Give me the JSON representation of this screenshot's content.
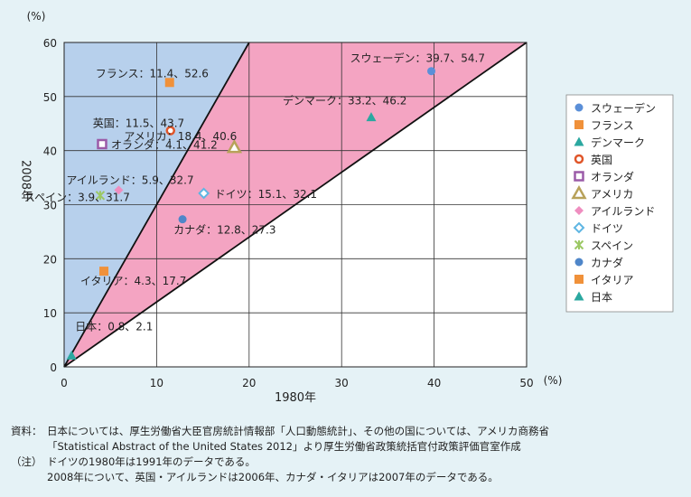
{
  "chart_data": {
    "type": "scatter",
    "x_unit": "(%)",
    "y_unit": "(%)",
    "xlabel": "1980年",
    "ylabel": "2008年",
    "xlim": [
      0,
      50
    ],
    "ylim": [
      0,
      60
    ],
    "x_ticks": [
      "0",
      "10",
      "20",
      "30",
      "40",
      "50"
    ],
    "y_ticks": [
      "0",
      "10",
      "20",
      "30",
      "40",
      "50",
      "60"
    ],
    "grid": true,
    "legend_position": "right",
    "reference_lines": [
      {
        "from": [
          0,
          0
        ],
        "to": [
          20,
          60
        ],
        "label": "slope 3"
      },
      {
        "from": [
          0,
          0
        ],
        "to": [
          50,
          60
        ],
        "label": "slope 1.2"
      }
    ],
    "shaded_regions": [
      {
        "fill": "#b7d0ec",
        "description": "above y = 3x"
      },
      {
        "fill": "#f4a4c2",
        "description": "between y = 1.2x and y = 3x"
      }
    ],
    "series": [
      {
        "name": "スウェーデン",
        "x": 39.7,
        "y": 54.7,
        "label": "スウェーデン：39.7、54.7",
        "marker": "circle",
        "color": "#5b8fd8"
      },
      {
        "name": "フランス",
        "x": 11.4,
        "y": 52.6,
        "label": "フランス：11.4、52.6",
        "marker": "square",
        "color": "#f0913a"
      },
      {
        "name": "デンマーク",
        "x": 33.2,
        "y": 46.2,
        "label": "デンマーク：33.2、46.2",
        "marker": "triangle",
        "color": "#2ba8a0"
      },
      {
        "name": "英国",
        "x": 11.5,
        "y": 43.7,
        "label": "英国：11.5、43.7",
        "marker": "ring",
        "color": "#e0562a"
      },
      {
        "name": "オランダ",
        "x": 4.1,
        "y": 41.2,
        "label": "オランダ：4.1、41.2",
        "marker": "hollow-square",
        "color": "#9b5ba8"
      },
      {
        "name": "アメリカ",
        "x": 18.4,
        "y": 40.6,
        "label": "アメリカ：18.4、40.6",
        "marker": "hollow-triangle",
        "color": "#b8a25a"
      },
      {
        "name": "アイルランド",
        "x": 5.9,
        "y": 32.7,
        "label": "アイルランド：5.9、32.7",
        "marker": "diamond",
        "color": "#ef8ec0"
      },
      {
        "name": "ドイツ",
        "x": 15.1,
        "y": 32.1,
        "label": "ドイツ：15.1、32.1",
        "marker": "hollow-diamond",
        "color": "#5fb6e3"
      },
      {
        "name": "スペイン",
        "x": 3.9,
        "y": 31.7,
        "label": "スペイン：3.9、31.7",
        "marker": "asterisk",
        "color": "#9cc864"
      },
      {
        "name": "カナダ",
        "x": 12.8,
        "y": 27.3,
        "label": "カナダ：12.8、27.3",
        "marker": "circle",
        "color": "#4f86c9"
      },
      {
        "name": "イタリア",
        "x": 4.3,
        "y": 17.7,
        "label": "イタリア：4.3、17.7",
        "marker": "square",
        "color": "#f0913a"
      },
      {
        "name": "日本",
        "x": 0.8,
        "y": 2.1,
        "label": "日本：0.8、2.1",
        "marker": "triangle",
        "color": "#2ba8a0"
      }
    ]
  },
  "notes": {
    "source_label": "資料：",
    "source_line1": "日本については、厚生労働省大臣官房統計情報部「人口動態統計」、その他の国については、アメリカ商務省",
    "source_line2": "「Statistical Abstract of the United States 2012」より厚生労働省政策統括官付政策評価官室作成",
    "note_label": "（注）",
    "note_line1": "ドイツの1980年は1991年のデータである。",
    "note_line2": "2008年について、英国・アイルランドは2006年、カナダ・イタリアは2007年のデータである。"
  }
}
